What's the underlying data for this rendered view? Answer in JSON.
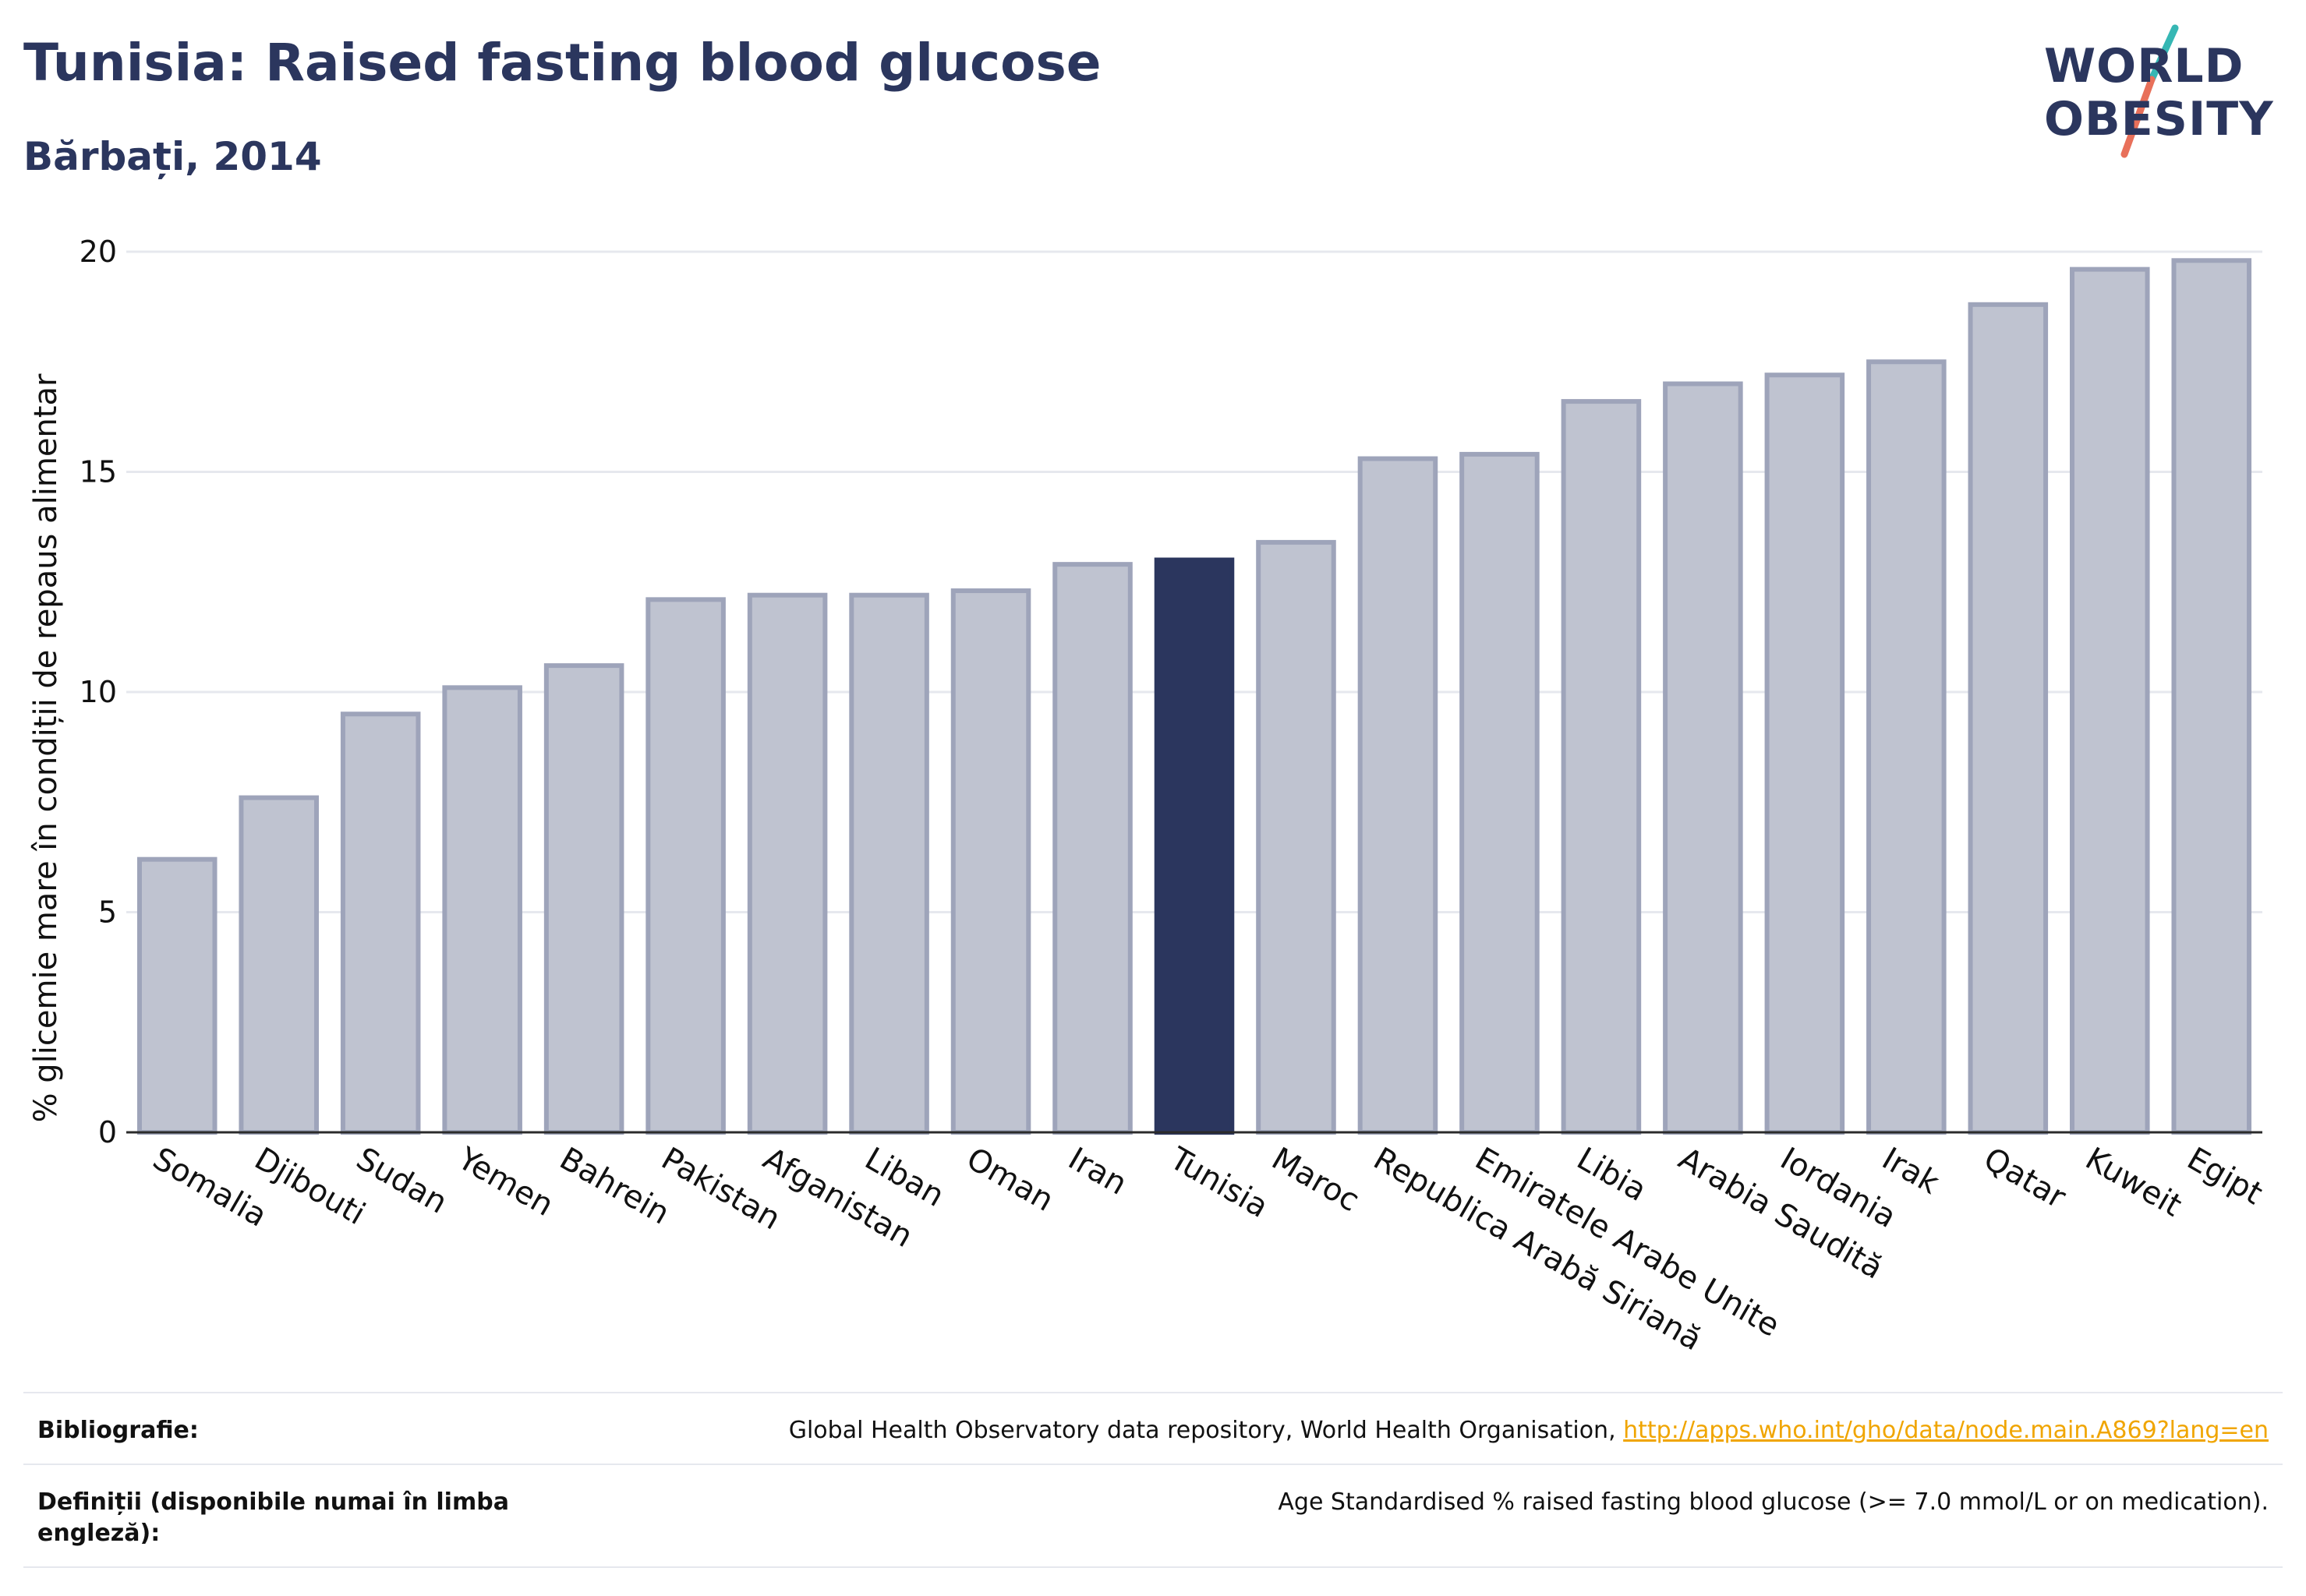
{
  "header": {
    "title": "Tunisia: Raised fasting blood glucose",
    "subtitle": "Bărbați, 2014"
  },
  "logo": {
    "line1": "WORLD",
    "line2": "OBESITY",
    "slash_colors": [
      "#36b7b4",
      "#e8705a"
    ]
  },
  "chart_data": {
    "type": "bar",
    "categories": [
      "Somalia",
      "Djibouti",
      "Sudan",
      "Yemen",
      "Bahrein",
      "Pakistan",
      "Afganistan",
      "Liban",
      "Oman",
      "Iran",
      "Tunisia",
      "Maroc",
      "Republica Arabă Siriană",
      "Emiratele Arabe Unite",
      "Libia",
      "Arabia Saudită",
      "Iordania",
      "Irak",
      "Qatar",
      "Kuweit",
      "Egipt"
    ],
    "values": [
      6.2,
      7.6,
      9.5,
      10.1,
      10.6,
      12.1,
      12.2,
      12.2,
      12.3,
      12.9,
      13.0,
      13.4,
      15.3,
      15.4,
      16.6,
      17.0,
      17.2,
      17.5,
      18.8,
      19.6,
      19.8
    ],
    "highlight": "Tunisia",
    "ylabel": "% glicemie mare în condiții de repaus alimentar",
    "ylim": [
      0,
      20
    ],
    "yticks": [
      0,
      5,
      10,
      15,
      20
    ],
    "grid": true,
    "colors": {
      "bar": "#bfc3d0",
      "bar_border": "#9ea4ba",
      "highlight": "#2b365e",
      "grid": "#e6e8ee",
      "axis": "#2b2b2b"
    }
  },
  "footer": {
    "bibliography_label": "Bibliografie:",
    "bibliography_text": "Global Health Observatory data repository, World Health Organisation, ",
    "bibliography_link": "http://apps.who.int/gho/data/node.main.A869?lang=en",
    "definitions_label": "Definiții (disponibile numai în limba engleză):",
    "definitions_text": "Age Standardised % raised fasting blood glucose (>= 7.0 mmol/L or on medication)."
  }
}
